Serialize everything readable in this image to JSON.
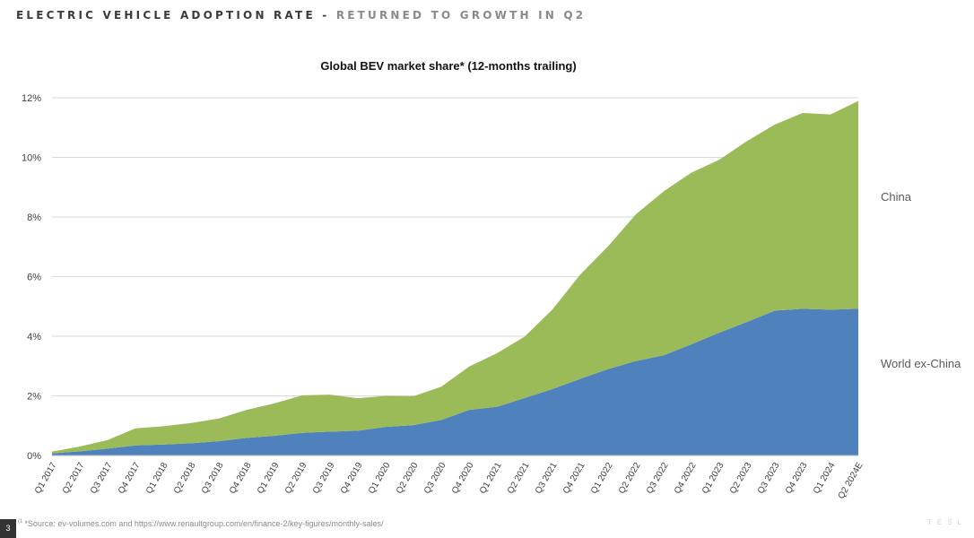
{
  "header": {
    "title": "ELECTRIC VEHICLE ADOPTION RATE",
    "separator": "-",
    "subtitle": "RETURNED TO GROWTH IN Q2"
  },
  "footer": {
    "page_number": "3",
    "footnote_marker": "(1",
    "source": "*Source: ev-volumes.com and https://www.renaultgroup.com/en/finance-2/key-figures/monthly-sales/",
    "brand": "TESL"
  },
  "chart_data": {
    "type": "area",
    "stacked": true,
    "title": "Global BEV market share* (12-months trailing)",
    "xlabel": "",
    "ylabel": "",
    "ylim": [
      0,
      12
    ],
    "y_ticks": [
      "0%",
      "2%",
      "4%",
      "6%",
      "8%",
      "10%",
      "12%"
    ],
    "y_tick_values": [
      0,
      2,
      4,
      6,
      8,
      10,
      12
    ],
    "grid": true,
    "legend": "direct labels to the right of the plot",
    "categories": [
      "Q1 2017",
      "Q2 2017",
      "Q3 2017",
      "Q4 2017",
      "Q1 2018",
      "Q2 2018",
      "Q3 2018",
      "Q4 2018",
      "Q1 2019",
      "Q2 2019",
      "Q3 2019",
      "Q4 2019",
      "Q1 2020",
      "Q2 2020",
      "Q3 2020",
      "Q4 2020",
      "Q1 2021",
      "Q2 2021",
      "Q3 2021",
      "Q4 2021",
      "Q1 2022",
      "Q2 2022",
      "Q3 2022",
      "Q4 2022",
      "Q1 2023",
      "Q2 2023",
      "Q3 2023",
      "Q4 2023",
      "Q1 2024",
      "Q2 2024E"
    ],
    "series": [
      {
        "name": "World ex-China",
        "color": "#4f81bd",
        "values": [
          0.07,
          0.14,
          0.23,
          0.34,
          0.37,
          0.41,
          0.48,
          0.59,
          0.66,
          0.76,
          0.8,
          0.83,
          0.96,
          1.02,
          1.19,
          1.53,
          1.63,
          1.93,
          2.23,
          2.57,
          2.9,
          3.17,
          3.36,
          3.73,
          4.12,
          4.48,
          4.86,
          4.92,
          4.89,
          4.92
        ]
      },
      {
        "name": "China",
        "color": "#9bbb59",
        "values": [
          0.06,
          0.16,
          0.29,
          0.57,
          0.61,
          0.68,
          0.76,
          0.94,
          1.09,
          1.26,
          1.24,
          1.09,
          1.04,
          0.97,
          1.12,
          1.45,
          1.8,
          2.06,
          2.67,
          3.5,
          4.12,
          4.92,
          5.5,
          5.76,
          5.8,
          6.07,
          6.24,
          6.57,
          6.55,
          6.97
        ]
      }
    ]
  }
}
